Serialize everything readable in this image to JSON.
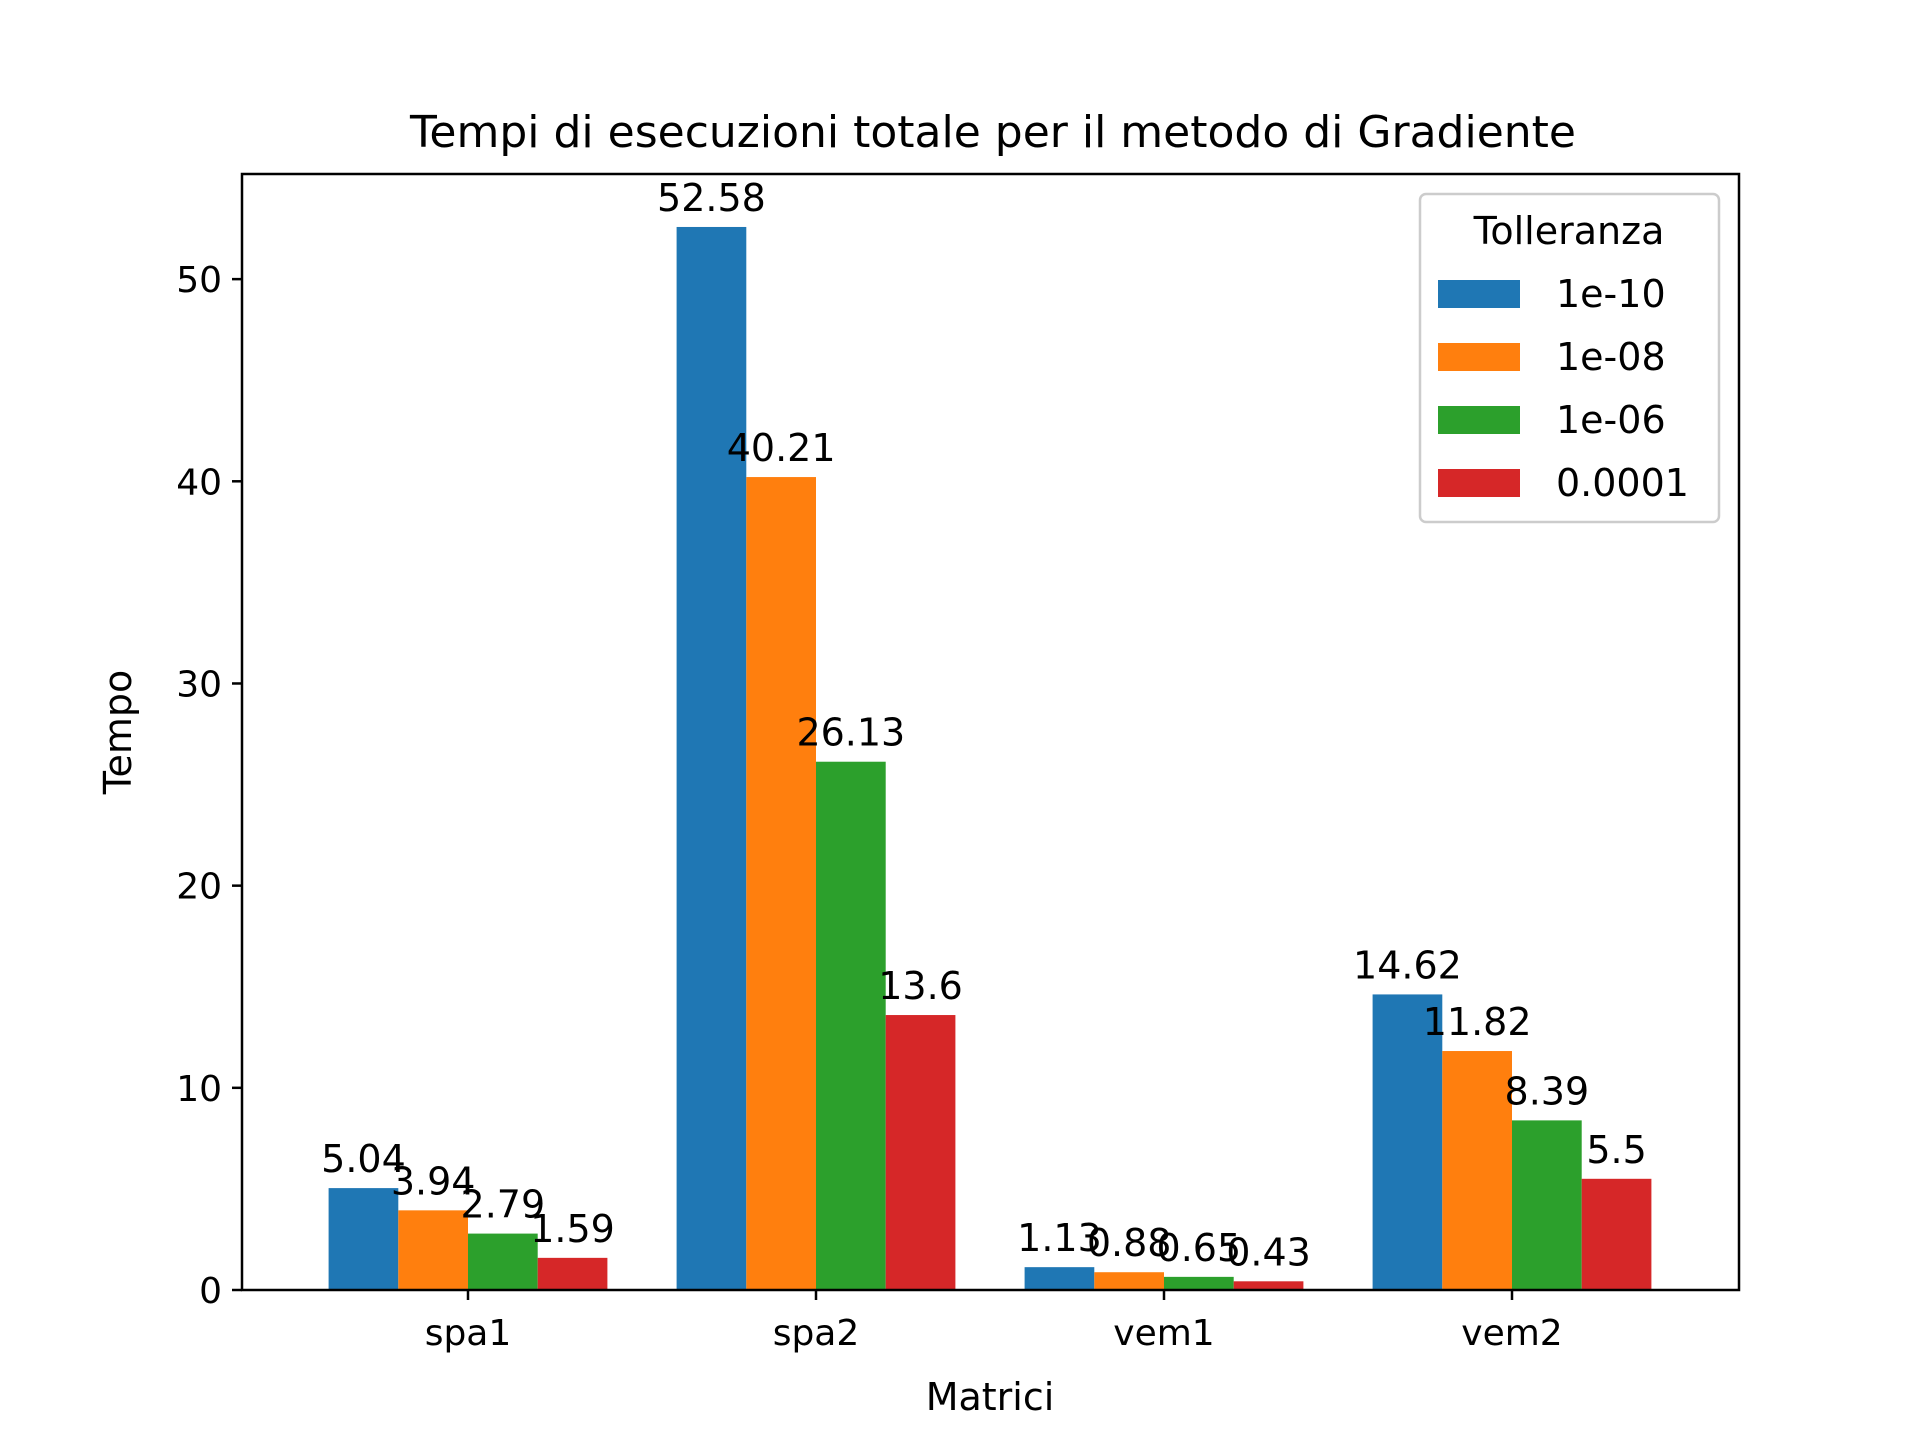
{
  "chart_data": {
    "type": "bar",
    "title": "Tempi di esecuzioni totale per il metodo di Gradiente",
    "xlabel": "Matrici",
    "ylabel": "Tempo",
    "categories": [
      "spa1",
      "spa2",
      "vem1",
      "vem2"
    ],
    "ylim": [
      0,
      55.2
    ],
    "yticks": [
      0,
      10,
      20,
      30,
      40,
      50
    ],
    "grid": false,
    "legend": {
      "title": "Tolleranza",
      "placement": "top-right"
    },
    "series": [
      {
        "name": "1e-10",
        "color": "#1f77b4",
        "values": [
          5.04,
          52.58,
          1.13,
          14.62
        ],
        "labels": [
          "5.04",
          "52.58",
          "1.13",
          "14.62"
        ]
      },
      {
        "name": "1e-08",
        "color": "#ff7f0e",
        "values": [
          3.94,
          40.21,
          0.88,
          11.82
        ],
        "labels": [
          "3.94",
          "40.21",
          "0.88",
          "11.82"
        ]
      },
      {
        "name": "1e-06",
        "color": "#2ca02c",
        "values": [
          2.79,
          26.13,
          0.65,
          8.39
        ],
        "labels": [
          "2.79",
          "26.13",
          "0.65",
          "8.39"
        ]
      },
      {
        "name": "0.0001",
        "color": "#d62728",
        "values": [
          1.59,
          13.6,
          0.43,
          5.5
        ],
        "labels": [
          "1.59",
          "13.6",
          "0.43",
          "5.5"
        ]
      }
    ]
  }
}
